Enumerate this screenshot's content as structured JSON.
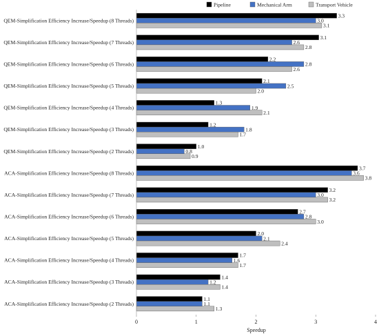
{
  "chart_data": {
    "type": "bar",
    "orientation": "horizontal",
    "xlabel": "Speedup",
    "ylabel": "",
    "xlim": [
      0,
      4
    ],
    "xticks": [
      0,
      1,
      2,
      3,
      4
    ],
    "legend_position": "top-right",
    "categories": [
      "QEM-Simplification Efficiency Increase/Speedup (8 Threads)",
      "QEM-Simplification Efficiency Increase/Speedup (7 Threads)",
      "QEM-Simplification Efficiency Increase/Speedup (6 Threads)",
      "QEM-Simplification Efficiency Increase/Speedup (5 Threads)",
      "QEM-Simplification Efficiency Increase/Speedup (4 Threads)",
      "QEM-Simplification Efficiency Increase/Speedup (3 Threads)",
      "QEM-Simplification Efficiency Increase/Speedup (2 Threads)",
      "ACA-Simplification Efficiency Increase/Speedup (8 Threads)",
      "ACA-Simplification Efficiency Increase/Speedup (7 Threads)",
      "ACA-Simplification Efficiency Increase/Speedup (6 Threads)",
      "ACA-Simplification Efficiency Increase/Speedup (5 Threads)",
      "ACA-Simplification Efficiency Increase/Speedup (4 Threads)",
      "ACA-Simplification Efficiency Increase/Speedup (3 Threads)",
      "ACA-Simplification Efficiency Increase/Speedup (2 Threads)"
    ],
    "series": [
      {
        "name": "Pipeline",
        "color": "#000000",
        "values": [
          3.35,
          3.05,
          2.2,
          2.1,
          1.3,
          1.2,
          1.0,
          3.7,
          3.2,
          2.7,
          2.0,
          1.7,
          1.4,
          1.1
        ],
        "labels": [
          "3.3",
          "3.1",
          "2.2",
          "2.1",
          "1.3",
          "1.2",
          "1.0",
          "3.7",
          "3.2",
          "2.7",
          "2.0",
          "1.7",
          "1.4",
          "1.1"
        ]
      },
      {
        "name": "Mechanical Arm",
        "color": "#4472C4",
        "values": [
          3.0,
          2.6,
          2.8,
          2.5,
          1.9,
          1.8,
          0.8,
          3.6,
          3.0,
          2.8,
          2.1,
          1.6,
          1.2,
          1.1
        ],
        "labels": [
          "3.0",
          "2.6",
          "2.8",
          "2.5",
          "1.9",
          "1.8",
          "0.8",
          "3.6",
          "3.0",
          "2.8",
          "2.1",
          "1.6",
          "1.2",
          "1.1"
        ]
      },
      {
        "name": "Transport Vehicle",
        "color": "#BFBFBF",
        "values": [
          3.1,
          2.8,
          2.6,
          2.0,
          2.1,
          1.7,
          0.9,
          3.8,
          3.2,
          3.0,
          2.4,
          1.7,
          1.4,
          1.3
        ],
        "labels": [
          "3.1",
          "2.8",
          "2.6",
          "2.0",
          "2.1",
          "1.7",
          "0.9",
          "3.8",
          "3.2",
          "3.0",
          "2.4",
          "1.7",
          "1.4",
          "1.3"
        ]
      }
    ]
  }
}
